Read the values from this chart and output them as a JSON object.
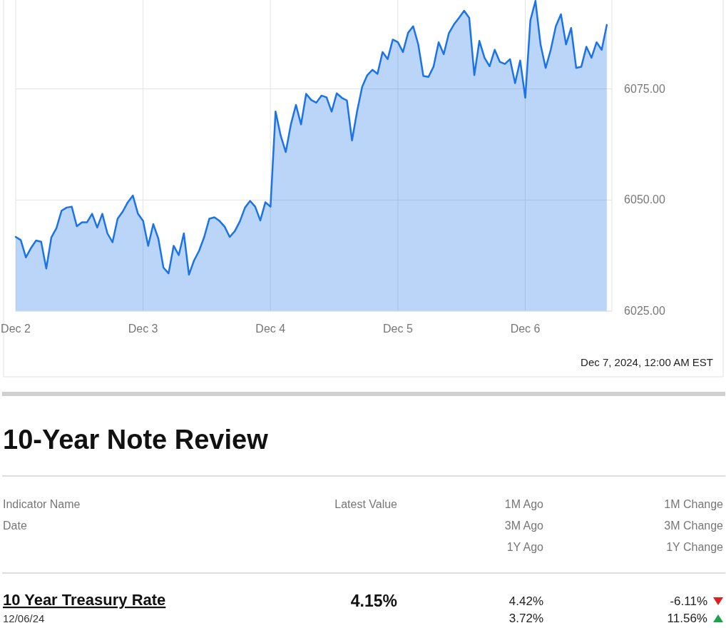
{
  "chart_data": [
    {
      "type": "area",
      "categories": [
        "Dec 2",
        null,
        null,
        null,
        null,
        null,
        null,
        null,
        null,
        null,
        null,
        null,
        null,
        null,
        null,
        null,
        null,
        null,
        null,
        null,
        null,
        null,
        null,
        null,
        null,
        "Dec 3",
        null,
        null,
        null,
        null,
        null,
        null,
        null,
        null,
        null,
        null,
        null,
        null,
        null,
        null,
        null,
        null,
        null,
        null,
        null,
        null,
        null,
        null,
        null,
        null,
        "Dec 4",
        null,
        null,
        null,
        null,
        null,
        null,
        null,
        null,
        null,
        null,
        null,
        null,
        null,
        null,
        null,
        null,
        null,
        null,
        null,
        null,
        null,
        null,
        null,
        null,
        "Dec 5",
        null,
        null,
        null,
        null,
        null,
        null,
        null,
        null,
        null,
        null,
        null,
        null,
        null,
        null,
        null,
        null,
        null,
        null,
        null,
        null,
        null,
        null,
        null,
        null,
        "Dec 6",
        null,
        null,
        null,
        null,
        null,
        null,
        null,
        null,
        null,
        null,
        null,
        null,
        null,
        null,
        null,
        null
      ],
      "series": [
        {
          "color": "#1a73e8",
          "values": [
            6041.7,
            6041.0,
            6037.1,
            6039.2,
            6040.9,
            6040.6,
            6034.6,
            6041.6,
            6043.7,
            6047.6,
            6048.3,
            6048.5,
            6044.1,
            6045.0,
            6045.0,
            6046.9,
            6043.8,
            6046.9,
            6042.5,
            6040.5,
            6045.8,
            6047.4,
            6049.5,
            6051.0,
            6046.9,
            6045.3,
            6039.7,
            6044.6,
            6041.3,
            6034.8,
            6033.5,
            6039.7,
            6037.6,
            6042.5,
            6033.2,
            6036.4,
            6038.6,
            6041.7,
            6045.8,
            6046.1,
            6045.3,
            6044.0,
            6041.7,
            6043.0,
            6045.2,
            6048.3,
            6049.8,
            6048.5,
            6045.4,
            6049.5,
            6048.5,
            6069.9,
            6064.5,
            6060.8,
            6067.0,
            6071.4,
            6067.0,
            6073.9,
            6072.5,
            6071.9,
            6073.5,
            6073.1,
            6069.9,
            6074.0,
            6073.0,
            6072.4,
            6063.4,
            6070.0,
            6075.5,
            6078.1,
            6079.3,
            6078.4,
            6083.3,
            6081.7,
            6086.1,
            6085.5,
            6083.3,
            6087.6,
            6089.1,
            6085.0,
            6077.9,
            6077.7,
            6080.0,
            6085.5,
            6082.8,
            6087.5,
            6089.5,
            6091.0,
            6092.6,
            6091.0,
            6078.1,
            6085.8,
            6082.0,
            6080.1,
            6083.8,
            6081.1,
            6080.6,
            6081.7,
            6076.3,
            6081.4,
            6073.0,
            6090.4,
            6094.8,
            6085.0,
            6079.7,
            6083.8,
            6089.1,
            6091.8,
            6085.0,
            6088.7,
            6079.7,
            6080.0,
            6084.5,
            6082.0,
            6085.5,
            6083.8,
            6089.4
          ]
        }
      ],
      "ylim": [
        6025,
        6095
      ],
      "yticks": [
        {
          "value": 6025,
          "label": "6025.00"
        },
        {
          "value": 6050,
          "label": "6050.00"
        },
        {
          "value": 6075,
          "label": "6075.00"
        }
      ],
      "grid": true,
      "annotations": [
        "Dec 7, 2024, 12:00 AM EST"
      ]
    },
    {
      "type": "other",
      "title": "10-Year Note Review",
      "annotations": [
        "Indicator Name",
        "Date",
        "Latest Value",
        "1M Ago",
        "3M Ago",
        "1Y Ago",
        "1M Change",
        "3M Change",
        "1Y Change",
        "10 Year Treasury Rate",
        "12/06/24",
        "4.15%",
        "4.42%",
        "3.72%",
        "-6.11%",
        "11.56%"
      ]
    }
  ]
}
